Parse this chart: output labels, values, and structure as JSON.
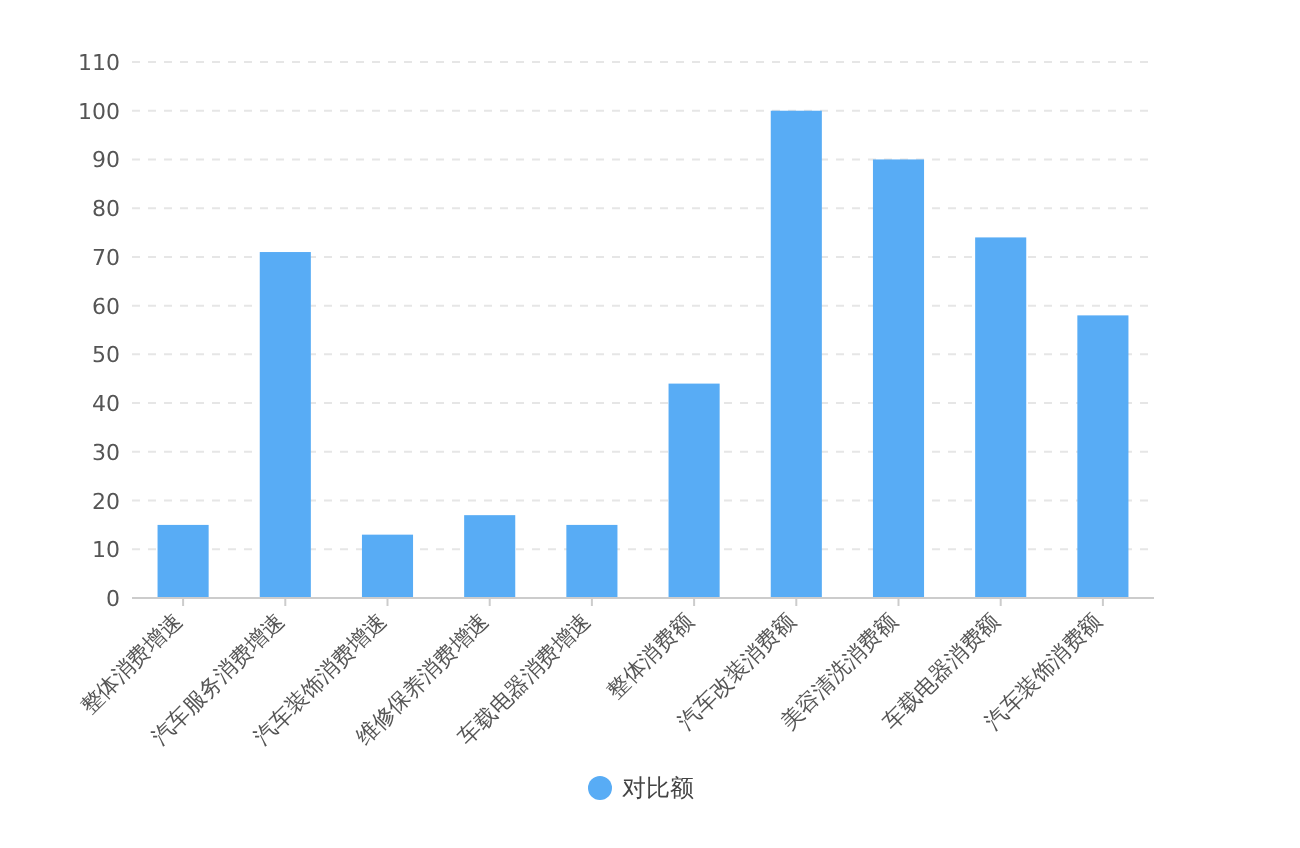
{
  "chart_data": {
    "type": "bar",
    "categories": [
      "整体消费增速",
      "汽车服务消费增速",
      "汽车装饰消费增速",
      "维修保养消费增速",
      "车载电器消费增速",
      "整体消费额",
      "汽车改装消费额",
      "美容清洗消费额",
      "车载电器消费额",
      "汽车装饰消费额"
    ],
    "series": [
      {
        "name": "对比额",
        "color": "#58acf5",
        "values": [
          15,
          71,
          13,
          17,
          15,
          44,
          100,
          90,
          74,
          58
        ]
      }
    ],
    "ylim": [
      0,
      110
    ],
    "yticks": [
      0,
      10,
      20,
      30,
      40,
      50,
      60,
      70,
      80,
      90,
      100,
      110
    ],
    "grid": "y",
    "legend": "bottom"
  }
}
